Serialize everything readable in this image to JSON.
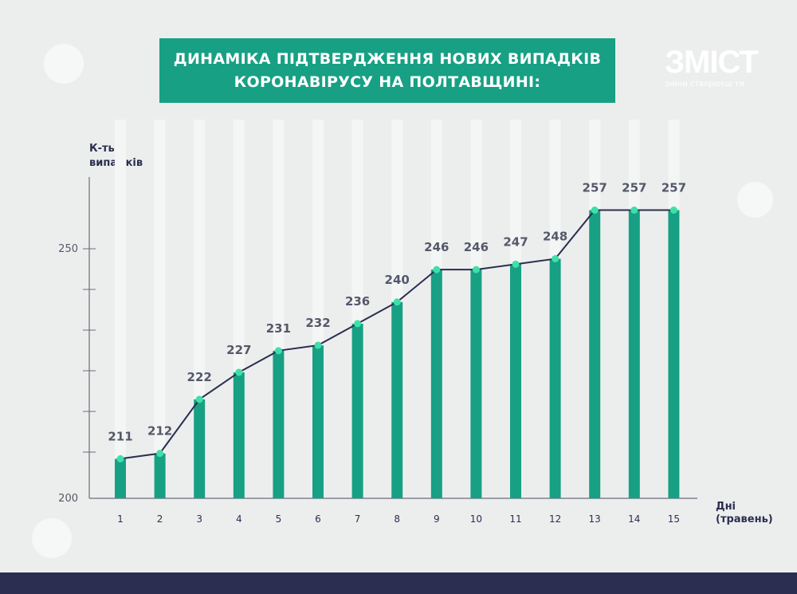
{
  "title_lines": [
    "ДИНАМІКА ПІДТВЕРДЖЕННЯ НОВИХ ВИПАДКІВ",
    "КОРОНАВІРУСУ НА ПОЛТАВЩИНІ:"
  ],
  "logo": {
    "name": "ЗМІСТ",
    "tagline": "зміни створюєш ти"
  },
  "colors": {
    "bar": "#17a084",
    "line": "#2b2e50",
    "point": "#3ee0a8",
    "title_bg": "#17a084",
    "footer": "#2b2e50"
  },
  "chart_data": {
    "type": "bar+line",
    "title": "ДИНАМІКА ПІДТВЕРДЖЕННЯ НОВИХ ВИПАДКІВ КОРОНАВІРУСУ НА ПОЛТАВЩИНІ:",
    "ylabel_lines": [
      "К-ть",
      "випадків"
    ],
    "xlabel_lines": [
      "Дні",
      "(травень)"
    ],
    "categories": [
      "1",
      "2",
      "3",
      "4",
      "5",
      "6",
      "7",
      "8",
      "9",
      "10",
      "11",
      "12",
      "13",
      "14",
      "15"
    ],
    "values": [
      211,
      212,
      222,
      227,
      231,
      232,
      236,
      240,
      246,
      246,
      247,
      248,
      257,
      257,
      257
    ],
    "yticks": [
      "200",
      "250"
    ],
    "ylim": [
      200,
      260
    ],
    "grid": false,
    "legend": "none"
  }
}
